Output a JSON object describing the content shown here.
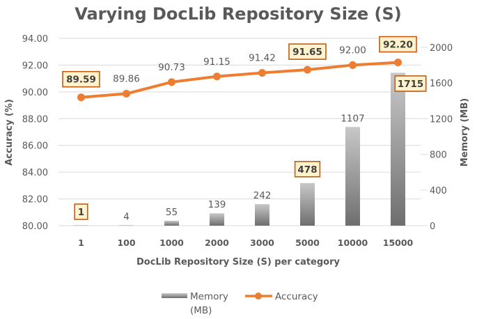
{
  "chart_data": {
    "type": "bar+line",
    "title": "Varying DocLib Repository Size (S)",
    "xlabel": "DocLib Repository Size (S) per category",
    "ylabel_left": "Accuracy (%)",
    "ylabel_right": "Memory (MB)",
    "categories": [
      "1",
      "100",
      "1000",
      "2000",
      "3000",
      "5000",
      "10000",
      "15000"
    ],
    "series": [
      {
        "name": "Memory (MB)",
        "type": "bar",
        "axis": "right",
        "values": [
          1,
          4,
          55,
          139,
          242,
          478,
          1107,
          1715
        ],
        "labels": [
          "1",
          "4",
          "55",
          "139",
          "242",
          "478",
          "1107",
          "1715"
        ],
        "highlighted": [
          true,
          false,
          false,
          false,
          false,
          true,
          false,
          true
        ]
      },
      {
        "name": "Accuracy",
        "type": "line",
        "axis": "left",
        "values": [
          89.59,
          89.86,
          90.73,
          91.15,
          91.42,
          91.65,
          92.0,
          92.2
        ],
        "labels": [
          "89.59",
          "89.86",
          "90.73",
          "91.15",
          "91.42",
          "91.65",
          "92.00",
          "92.20"
        ],
        "highlighted": [
          true,
          false,
          false,
          false,
          false,
          true,
          false,
          true
        ]
      }
    ],
    "ylim_left": [
      80,
      94
    ],
    "yticks_left": [
      "80.00",
      "82.00",
      "84.00",
      "86.00",
      "88.00",
      "90.00",
      "92.00",
      "94.00"
    ],
    "ylim_right": [
      0,
      2000
    ],
    "yticks_right": [
      "0",
      "400",
      "800",
      "1200",
      "1600",
      "2000"
    ],
    "grid": true,
    "legend_position": "bottom",
    "legend": [
      {
        "label_line1": "Memory",
        "label_line2": "(MB)"
      },
      {
        "label_line1": "Accuracy"
      }
    ],
    "colors": {
      "line": "#ED7D31",
      "bar_top": "#C8C8C8",
      "bar_bottom": "#6E6E6E",
      "highlight_fill": "#FFF2CC",
      "highlight_border": "#C55A11",
      "text": "#595959",
      "grid": "#D9D9D9"
    }
  }
}
